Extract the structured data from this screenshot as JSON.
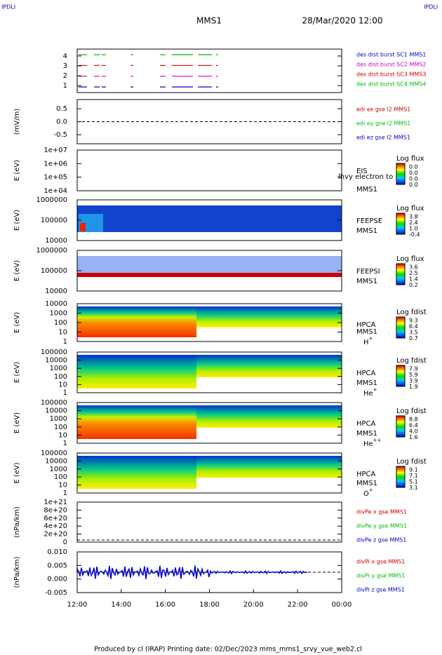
{
  "header": {
    "corner_left": "IPDLI",
    "corner_right": "IPDLI",
    "title": "MMS1",
    "date": "28/Mar/2020 12:00"
  },
  "panels": [
    {
      "ylabel": "",
      "yticks": [
        "4",
        "3",
        "2",
        "1"
      ],
      "legend": [
        {
          "text": "des dist burst SC1 MMS1",
          "color": "#0000cc"
        },
        {
          "text": "des dist burst SC2 MMS2",
          "color": "#cc00cc"
        },
        {
          "text": "des dist burst SC3 MMS3",
          "color": "#cc0000"
        },
        {
          "text": "des dist burst SC4 MMS4",
          "color": "#00bb00"
        }
      ]
    },
    {
      "ylabel": "(mV/m)",
      "yticks": [
        "0.5",
        "0.0",
        "-0.5"
      ],
      "legend": [
        {
          "text": "edi ex gse l2 MMS1",
          "color": "#cc0000"
        },
        {
          "text": "edi ey gse l2 MMS1",
          "color": "#00bb00"
        },
        {
          "text": "edi ez gse l2 MMS1",
          "color": "#0000cc"
        }
      ]
    },
    {
      "ylabel": "E (eV)",
      "yticks": [
        "1e+07",
        "1e+06",
        "1e+05",
        "1e+04"
      ],
      "side": [
        "EIS",
        "MMS1"
      ],
      "overlay": "lhvy electron to",
      "cbar_title": "Log flux",
      "cbar": [
        "0.0",
        "0.0",
        "0.0",
        "0.0"
      ]
    },
    {
      "ylabel": "E (eV)",
      "yticks": [
        "1000000",
        "100000",
        "10000"
      ],
      "side": [
        "FEEPSE",
        "MMS1"
      ],
      "cbar_title": "Log flux",
      "cbar": [
        "3.8",
        "2.4",
        "1.0",
        "-0.4"
      ]
    },
    {
      "ylabel": "E (eV)",
      "yticks": [
        "1000000",
        "100000",
        "10000"
      ],
      "side": [
        "FEEPSI",
        "MMS1"
      ],
      "cbar_title": "Log flux",
      "cbar": [
        "3.6",
        "2.5",
        "1.4",
        "0.2"
      ]
    },
    {
      "ylabel": "E (eV)",
      "yticks": [
        "10000",
        "1000",
        "100",
        "10",
        "1"
      ],
      "side": [
        "HPCA",
        "MMS1"
      ],
      "ion": {
        "text": "H",
        "sup": "+"
      },
      "cbar_title": "Log fdist",
      "cbar": [
        "9.3",
        "6.4",
        "3.5",
        "0.7"
      ]
    },
    {
      "ylabel": "E (eV)",
      "yticks": [
        "100000",
        "10000",
        "1000",
        "100",
        "10",
        "1"
      ],
      "side": [
        "HPCA",
        "MMS1"
      ],
      "ion": {
        "text": "He",
        "sup": "+"
      },
      "cbar_title": "Log fdist",
      "cbar": [
        "7.9",
        "5.9",
        "3.9",
        "1.9"
      ]
    },
    {
      "ylabel": "E (eV)",
      "yticks": [
        "100000",
        "10000",
        "1000",
        "100",
        "10",
        "1"
      ],
      "side": [
        "HPCA",
        "MMS1"
      ],
      "ion": {
        "text": "He",
        "sup": "++"
      },
      "cbar_title": "Log fdist",
      "cbar": [
        "8.8",
        "6.4",
        "4.0",
        "1.6"
      ]
    },
    {
      "ylabel": "E (eV)",
      "yticks": [
        "100000",
        "10000",
        "1000",
        "100",
        "10",
        "1"
      ],
      "side": [
        "HPCA",
        "MMS1"
      ],
      "ion": {
        "text": "O",
        "sup": "+"
      },
      "cbar_title": "Log fdist",
      "cbar": [
        "9.1",
        "7.1",
        "5.1",
        "3.1"
      ]
    },
    {
      "ylabel": "(nPa/km)",
      "yticks": [
        "1e+21",
        "8e+20",
        "6e+20",
        "4e+20",
        "2e+20",
        "0"
      ],
      "legend": [
        {
          "text": "divPe x gse MMS1",
          "color": "#cc0000"
        },
        {
          "text": "divPe y gse MMS1",
          "color": "#00bb00"
        },
        {
          "text": "divPe z gse MMS1",
          "color": "#0000cc"
        }
      ]
    },
    {
      "ylabel": "(nPa/km)",
      "yticks": [
        "0.010",
        "0.005",
        "0.000",
        "-0.005"
      ],
      "legend": [
        {
          "text": "divPi x gse MMS1",
          "color": "#cc0000"
        },
        {
          "text": "divPi y gse MMS1",
          "color": "#00bb00"
        },
        {
          "text": "divPi z gse MMS1",
          "color": "#0000cc"
        }
      ]
    }
  ],
  "xticks": [
    "12:00",
    "14:00",
    "16:00",
    "18:00",
    "20:00",
    "22:00",
    "00:00"
  ],
  "footer": "Produced by cl (IRAP)   Printing date: 02/Dec/2023   mms_mms1_srvy_vue_web2.cl"
}
